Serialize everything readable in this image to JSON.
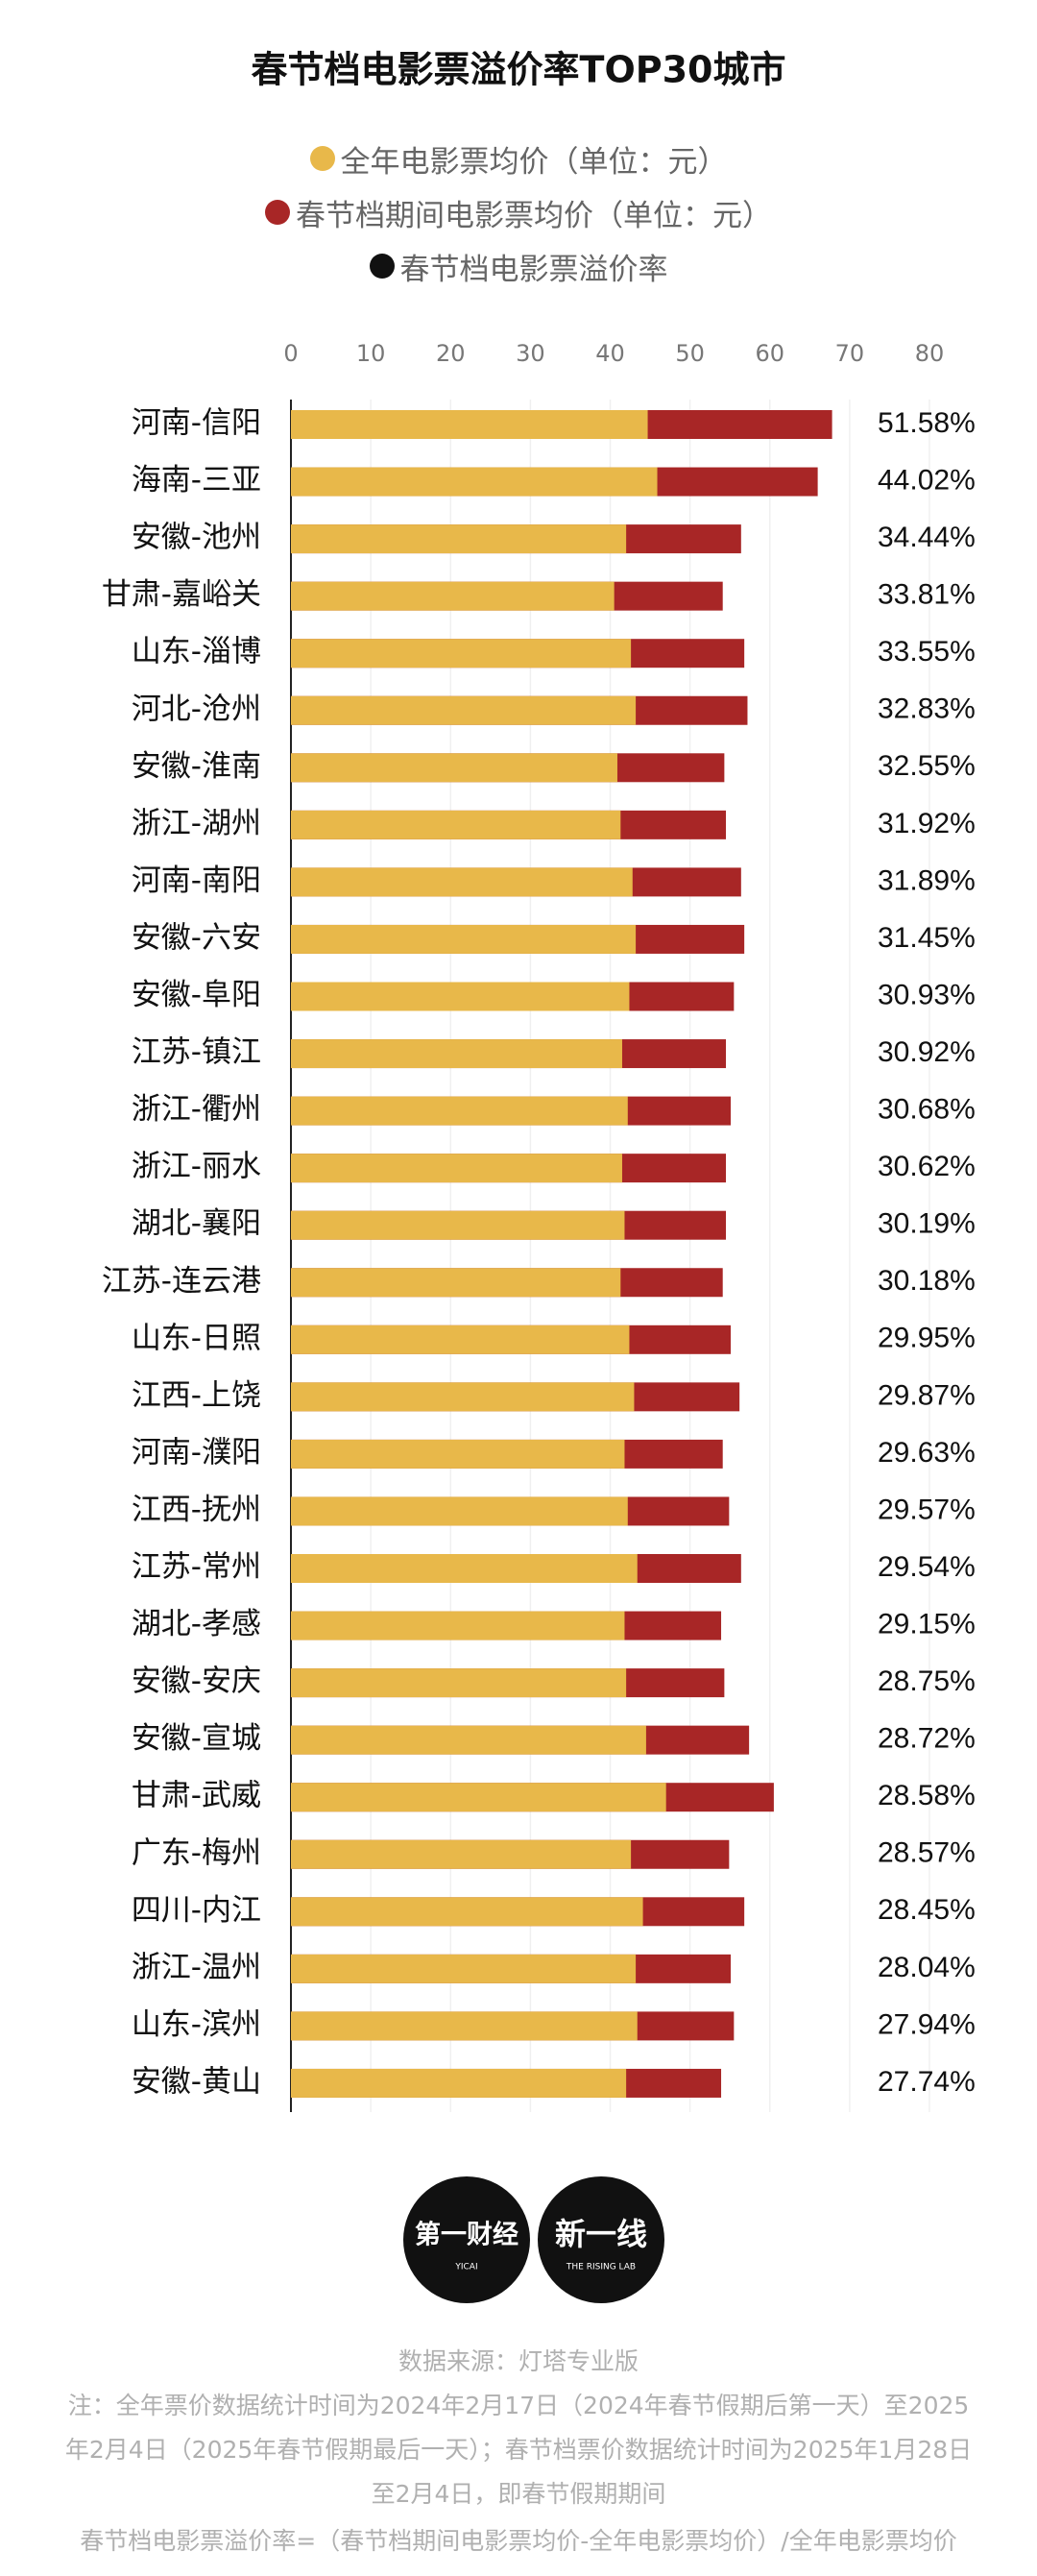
{
  "chart_data": {
    "type": "bar",
    "title": "春节档电影票溢价率TOP30城市",
    "categories": [
      "河南-信阳",
      "海南-三亚",
      "安徽-池州",
      "甘肃-嘉峪关",
      "山东-淄博",
      "河北-沧州",
      "安徽-淮南",
      "浙江-湖州",
      "河南-南阳",
      "安徽-六安",
      "安徽-阜阳",
      "江苏-镇江",
      "浙江-衢州",
      "浙江-丽水",
      "湖北-襄阳",
      "江苏-连云港",
      "山东-日照",
      "江西-上饶",
      "河南-濮阳",
      "江西-抚州",
      "江苏-常州",
      "湖北-孝感",
      "安徽-安庆",
      "安徽-宣城",
      "甘肃-武威",
      "广东-梅州",
      "四川-内江",
      "浙江-温州",
      "山东-滨州",
      "安徽-黄山"
    ],
    "series": [
      {
        "name": "全年电影票均价（单位：元）",
        "color": "#e8b84a",
        "values": [
          44.7,
          45.9,
          42.0,
          40.5,
          42.6,
          43.2,
          40.9,
          41.3,
          42.8,
          43.2,
          42.4,
          41.5,
          42.2,
          41.5,
          41.8,
          41.3,
          42.4,
          43.0,
          41.8,
          42.2,
          43.4,
          41.8,
          42.0,
          44.5,
          47.0,
          42.6,
          44.1,
          43.2,
          43.4,
          42.0
        ]
      },
      {
        "name": "春节档期间电影票均价（单位：元）",
        "color": "#a82626",
        "values": [
          67.8,
          66.0,
          56.4,
          54.1,
          56.8,
          57.2,
          54.3,
          54.5,
          56.4,
          56.8,
          55.5,
          54.5,
          55.1,
          54.5,
          54.5,
          54.1,
          55.1,
          56.2,
          54.1,
          54.9,
          56.4,
          53.9,
          54.3,
          57.4,
          60.5,
          54.9,
          56.8,
          55.1,
          55.5,
          53.9
        ]
      },
      {
        "name": "春节档电影票溢价率",
        "color": "#111111",
        "values": [
          51.58,
          44.02,
          34.44,
          33.81,
          33.55,
          32.83,
          32.55,
          31.92,
          31.89,
          31.45,
          30.93,
          30.92,
          30.68,
          30.62,
          30.19,
          30.18,
          29.95,
          29.87,
          29.63,
          29.57,
          29.54,
          29.15,
          28.75,
          28.72,
          28.58,
          28.57,
          28.45,
          28.04,
          27.94,
          27.74
        ],
        "value_labels": [
          "51.58%",
          "44.02%",
          "34.44%",
          "33.81%",
          "33.55%",
          "32.83%",
          "32.55%",
          "31.92%",
          "31.89%",
          "31.45%",
          "30.93%",
          "30.92%",
          "30.68%",
          "30.62%",
          "30.19%",
          "30.18%",
          "29.95%",
          "29.87%",
          "29.63%",
          "29.57%",
          "29.54%",
          "29.15%",
          "28.75%",
          "28.72%",
          "28.58%",
          "28.57%",
          "28.45%",
          "28.04%",
          "27.94%",
          "27.74%"
        ]
      }
    ],
    "xlim": [
      0,
      80
    ],
    "xticks": [
      0,
      10,
      20,
      30,
      40,
      50,
      60,
      70,
      80
    ],
    "grid": true
  },
  "logos": [
    {
      "name": "第一财经",
      "sub": "YICAI"
    },
    {
      "name": "新一线",
      "sub": "THE RISING LAB"
    }
  ],
  "footer": {
    "source": "数据来源：灯塔专业版",
    "note": "注：全年票价数据统计时间为2024年2月17日（2024年春节假期后第一天）至2025年2月4日（2025年春节假期最后一天）；春节档票价数据统计时间为2025年1月28日至2月4日，即春节假期期间",
    "formula": "春节档电影票溢价率=（春节档期间电影票均价-全年电影票均价）/全年电影票均价"
  }
}
